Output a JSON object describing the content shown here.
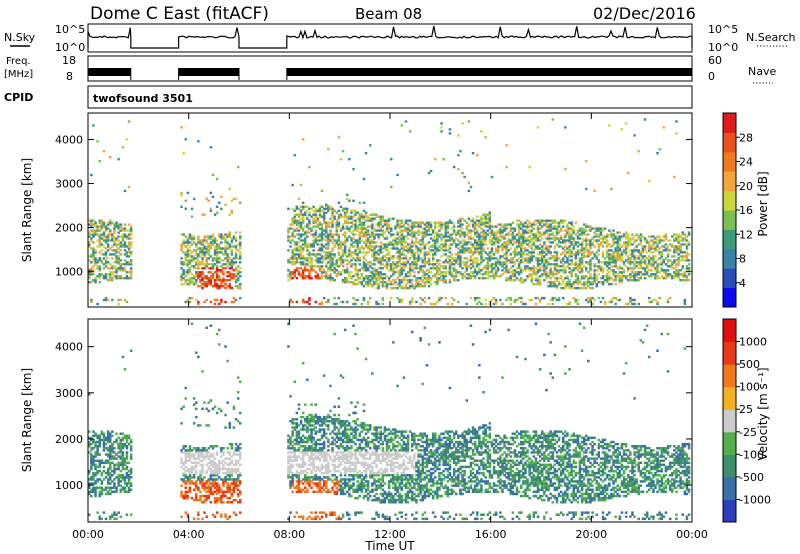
{
  "header": {
    "title": "Dome C East (fitACF)",
    "beam": "Beam 08",
    "date": "02/Dec/2016"
  },
  "strips": {
    "nsky_label": "N.Sky",
    "nsky_ticks": [
      "10^5",
      "10^0"
    ],
    "nsky_right_ticks": [
      "10^5",
      "10^0"
    ],
    "nsearch_label": "N.Search",
    "freq_label": "Freq.",
    "freq_unit": "[MHz]",
    "freq_ticks": [
      "18",
      "8"
    ],
    "nave_ticks": [
      "60",
      "0"
    ],
    "nave_label": "Nave",
    "cpid_label": "CPID",
    "cpid_value": "twofsound 3501"
  },
  "chart_data": [
    {
      "type": "heatmap",
      "name": "power",
      "ylabel": "Slant Range [km]",
      "ylim": [
        200,
        4600
      ],
      "yticks": [
        1000,
        2000,
        3000,
        4000
      ],
      "colorbar_label": "Power [dB]",
      "colorbar_ticks": [
        "4",
        "8",
        "12",
        "16",
        "20",
        "24",
        "28"
      ],
      "colorbar_colors": [
        "#0a0aef",
        "#2a4fb8",
        "#3b82a8",
        "#3f9a78",
        "#7bbf52",
        "#cfd43a",
        "#f2a53a",
        "#f07a20",
        "#e8501c",
        "#e01a1a"
      ],
      "gaps_ut_hours": [
        [
          1.7,
          3.6
        ],
        [
          6.0,
          7.9
        ]
      ],
      "echo_region_km": [
        700,
        2000
      ]
    },
    {
      "type": "heatmap",
      "name": "velocity",
      "xlabel": "Time UT",
      "xticks": [
        "00:00",
        "04:00",
        "08:00",
        "12:00",
        "16:00",
        "20:00",
        "00:00"
      ],
      "ylabel": "Slant Range [km]",
      "ylim": [
        200,
        4600
      ],
      "yticks": [
        1000,
        2000,
        3000,
        4000
      ],
      "colorbar_label": "Velocity [m s⁻¹]",
      "colorbar_ticks": [
        "1000",
        "500",
        "100",
        "25",
        "-25",
        "-100",
        "-500",
        "-1000"
      ],
      "colorbar_colors": [
        "#2d3fbf",
        "#3a6fa8",
        "#3f8e6c",
        "#52b04c",
        "#cccccc",
        "#f5b020",
        "#f07a1a",
        "#e83a18",
        "#e01010"
      ],
      "gaps_ut_hours": [
        [
          1.7,
          3.6
        ],
        [
          6.0,
          7.9
        ]
      ],
      "echo_region_km": [
        700,
        2000
      ]
    }
  ]
}
